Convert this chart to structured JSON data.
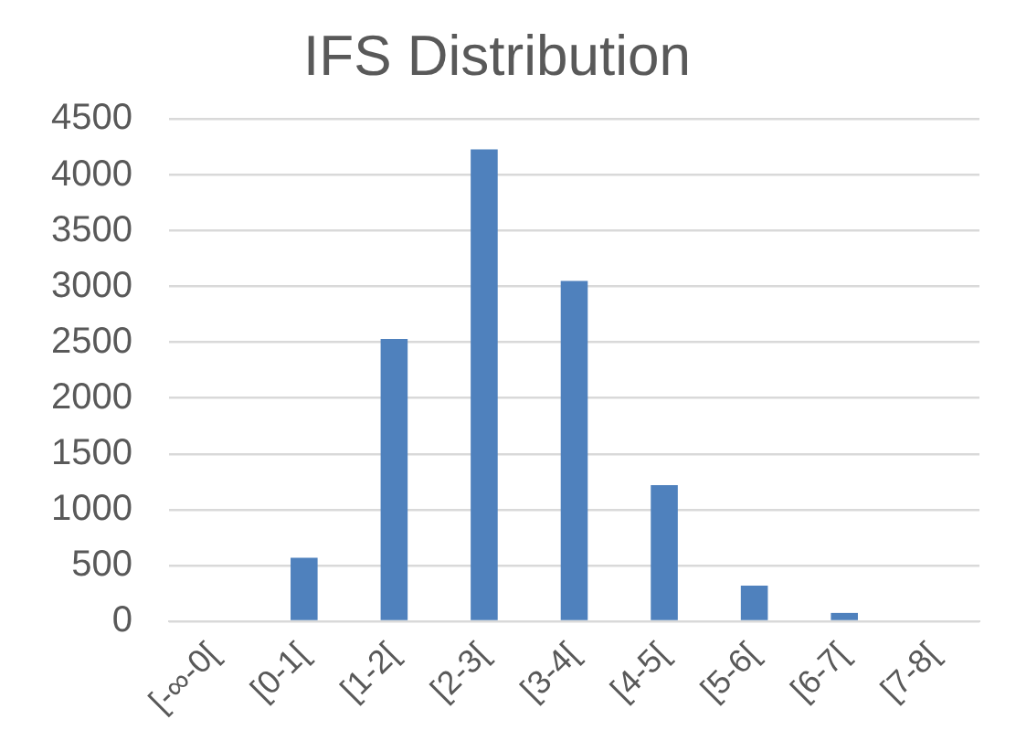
{
  "chart_data": {
    "type": "bar",
    "title": "IFS Distribution",
    "categories": [
      "[-∞-0[",
      "[0-1[",
      "[1-2[",
      "[2-3[",
      "[3-4[",
      "[4-5[",
      "[5-6[",
      "[6-7[",
      "[7-8["
    ],
    "values": [
      0,
      570,
      2530,
      4230,
      3050,
      1220,
      320,
      75,
      0
    ],
    "color": "#4f81bd",
    "ylim": [
      0,
      4500
    ],
    "yticks": [
      0,
      500,
      1000,
      1500,
      2000,
      2500,
      3000,
      3500,
      4000,
      4500
    ],
    "grid": "y"
  }
}
